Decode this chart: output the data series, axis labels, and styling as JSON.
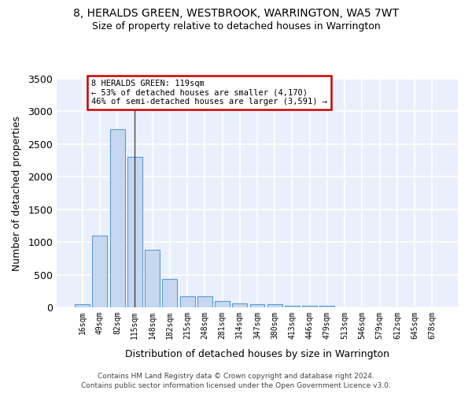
{
  "title": "8, HERALDS GREEN, WESTBROOK, WARRINGTON, WA5 7WT",
  "subtitle": "Size of property relative to detached houses in Warrington",
  "xlabel": "Distribution of detached houses by size in Warrington",
  "ylabel": "Number of detached properties",
  "categories": [
    "16sqm",
    "49sqm",
    "82sqm",
    "115sqm",
    "148sqm",
    "182sqm",
    "215sqm",
    "248sqm",
    "281sqm",
    "314sqm",
    "347sqm",
    "380sqm",
    "413sqm",
    "446sqm",
    "479sqm",
    "513sqm",
    "546sqm",
    "579sqm",
    "612sqm",
    "645sqm",
    "678sqm"
  ],
  "values": [
    50,
    1100,
    2730,
    2300,
    880,
    430,
    170,
    165,
    95,
    60,
    50,
    45,
    30,
    25,
    20,
    5,
    5,
    3,
    2,
    1,
    1
  ],
  "bar_color": "#c5d8f0",
  "bar_edge_color": "#5b9bd5",
  "highlighted_bar_index": 3,
  "highlight_line_color": "#404040",
  "ylim": [
    0,
    3500
  ],
  "yticks": [
    0,
    500,
    1000,
    1500,
    2000,
    2500,
    3000,
    3500
  ],
  "annotation_text": "8 HERALDS GREEN: 119sqm\n← 53% of detached houses are smaller (4,170)\n46% of semi-detached houses are larger (3,591) →",
  "annotation_box_color": "#ffffff",
  "annotation_border_color": "#cc0000",
  "bg_color": "#eaf0fb",
  "grid_color": "#ffffff",
  "footer_line1": "Contains HM Land Registry data © Crown copyright and database right 2024.",
  "footer_line2": "Contains public sector information licensed under the Open Government Licence v3.0."
}
